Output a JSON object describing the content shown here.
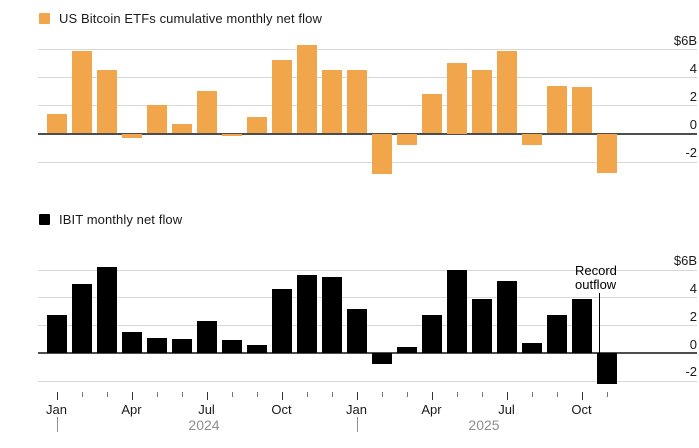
{
  "colors": {
    "orange_bar": "#F2A64B",
    "black_bar": "#000000",
    "gridline": "#D8D8D8",
    "zero_line": "#4D4D4D",
    "axis_text": "#1A1A1A",
    "year_text": "#8E8E8E"
  },
  "chart_data": [
    {
      "type": "bar",
      "title": "US Bitcoin ETFs cumulative monthly net flow",
      "series_color": "#F2A64B",
      "unit": "billions of US dollars",
      "x": [
        "Jan 2024",
        "Feb 2024",
        "Mar 2024",
        "Apr 2024",
        "May 2024",
        "Jun 2024",
        "Jul 2024",
        "Aug 2024",
        "Sep 2024",
        "Oct 2024",
        "Nov 2024",
        "Dec 2024",
        "Jan 2025",
        "Feb 2025",
        "Mar 2025",
        "Apr 2025",
        "May 2025",
        "Jun 2025",
        "Jul 2025",
        "Aug 2025",
        "Sep 2025",
        "Oct 2025",
        "Nov 2025"
      ],
      "values": [
        1.4,
        5.9,
        4.5,
        -0.3,
        2.0,
        0.7,
        3.0,
        -0.15,
        1.2,
        5.2,
        6.3,
        4.5,
        4.5,
        -2.9,
        -0.8,
        2.8,
        5.0,
        4.5,
        5.9,
        -0.8,
        3.4,
        3.3,
        -2.8
      ],
      "ylim": [
        -3.5,
        6.6
      ],
      "yticks": [
        6,
        4,
        2,
        0,
        -2
      ],
      "ytick_labels": [
        "$6B",
        "4",
        "2",
        "0",
        "-2"
      ],
      "grid": "horizontal",
      "legend_position": "top-left"
    },
    {
      "type": "bar",
      "title": "IBIT monthly net flow",
      "series_color": "#000000",
      "unit": "billions of US dollars",
      "x": [
        "Jan 2024",
        "Feb 2024",
        "Mar 2024",
        "Apr 2024",
        "May 2024",
        "Jun 2024",
        "Jul 2024",
        "Aug 2024",
        "Sep 2024",
        "Oct 2024",
        "Nov 2024",
        "Dec 2024",
        "Jan 2025",
        "Feb 2025",
        "Mar 2025",
        "Apr 2025",
        "May 2025",
        "Jun 2025",
        "Jul 2025",
        "Aug 2025",
        "Sep 2025",
        "Oct 2025",
        "Nov 2025"
      ],
      "values": [
        2.7,
        5.0,
        6.2,
        1.5,
        1.1,
        1.0,
        2.3,
        0.9,
        0.6,
        4.6,
        5.6,
        5.5,
        3.2,
        -0.8,
        0.4,
        2.7,
        6.0,
        3.9,
        5.2,
        0.7,
        2.7,
        3.9,
        -2.2
      ],
      "ylim": [
        -2.6,
        6.4
      ],
      "yticks": [
        6,
        4,
        2,
        0,
        -2
      ],
      "ytick_labels": [
        "$6B",
        "4",
        "2",
        "0",
        "-2"
      ],
      "grid": "horizontal",
      "legend_position": "top-left",
      "annotation": {
        "lines": [
          "Record",
          "outflow"
        ],
        "target": "Nov 2025"
      }
    }
  ],
  "x_axis": {
    "month_labels": [
      "Jan",
      "Apr",
      "Jul",
      "Oct",
      "Jan",
      "Apr",
      "Jul",
      "Oct"
    ],
    "year_labels": [
      "2024",
      "2025"
    ]
  }
}
